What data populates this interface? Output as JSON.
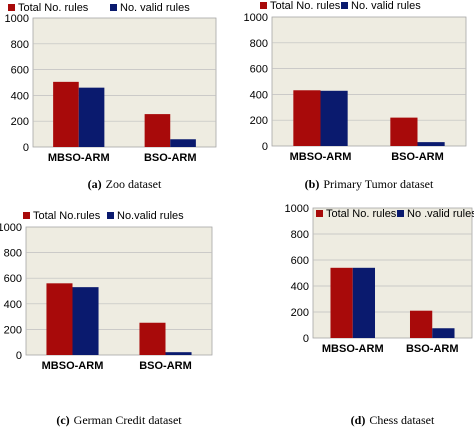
{
  "colors": {
    "total": "#a80a0a",
    "valid": "#0a1a6e",
    "plot_bg": "#eeece1",
    "grid": "#bfbfbf"
  },
  "chart_data": [
    {
      "type": "bar",
      "caption_label": "(a)",
      "caption_text": "Zoo dataset",
      "categories": [
        "MBSO-ARM",
        "BSO-ARM"
      ],
      "series": [
        {
          "name": "Total No. rules",
          "values": [
            505,
            255
          ]
        },
        {
          "name": "No. valid rules",
          "values": [
            460,
            60
          ]
        }
      ],
      "yticks": [
        "0",
        "200",
        "400",
        "600",
        "800",
        "1000"
      ],
      "ylim": [
        0,
        1000
      ],
      "grid": true,
      "legend": "top"
    },
    {
      "type": "bar",
      "caption_label": "(b)",
      "caption_text": "Primary Tumor dataset",
      "categories": [
        "MBSO-ARM",
        "BSO-ARM"
      ],
      "series": [
        {
          "name": "Total No. rules",
          "values": [
            432,
            220
          ]
        },
        {
          "name": "No. valid rules",
          "values": [
            428,
            30
          ]
        }
      ],
      "yticks": [
        "0",
        "200",
        "400",
        "600",
        "800",
        "1000"
      ],
      "ylim": [
        0,
        1000
      ],
      "grid": true,
      "legend": "top"
    },
    {
      "type": "bar",
      "caption_label": "(c)",
      "caption_text": "German Credit dataset",
      "categories": [
        "MBSO-ARM",
        "BSO-ARM"
      ],
      "series": [
        {
          "name": "Total No.rules",
          "values": [
            560,
            252
          ]
        },
        {
          "name": "No.valid rules",
          "values": [
            530,
            22
          ]
        }
      ],
      "yticks": [
        "0",
        "200",
        "400",
        "600",
        "800",
        "1000"
      ],
      "ylim": [
        0,
        1000
      ],
      "grid": true,
      "legend": "top"
    },
    {
      "type": "bar",
      "caption_label": "(d)",
      "caption_text": "Chess dataset",
      "categories": [
        "MBSO-ARM",
        "BSO-ARM"
      ],
      "series": [
        {
          "name": "Total No. rules",
          "values": [
            540,
            210
          ]
        },
        {
          "name": "No .valid rules",
          "values": [
            540,
            75
          ]
        }
      ],
      "yticks": [
        "0",
        "200",
        "400",
        "600",
        "800",
        "1000"
      ],
      "ylim": [
        0,
        1000
      ],
      "grid": true,
      "legend": "top"
    }
  ]
}
